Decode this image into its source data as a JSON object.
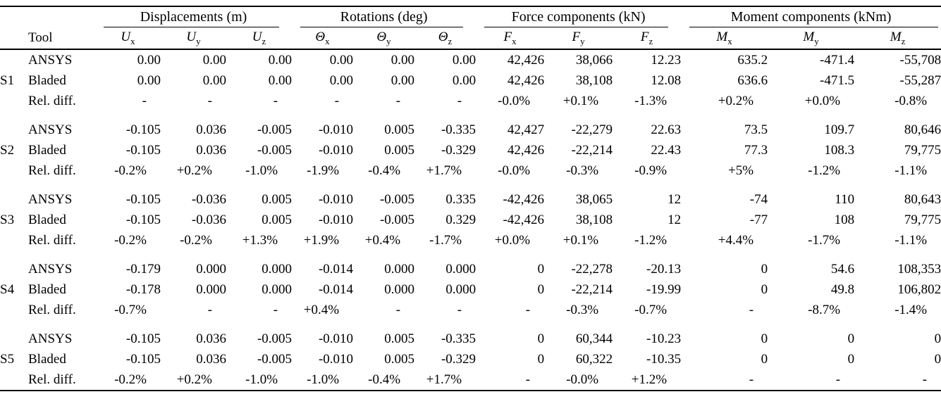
{
  "table": {
    "tool_header": "Tool",
    "groups": [
      {
        "label": "Displacements (m)"
      },
      {
        "label": "Rotations (deg)"
      },
      {
        "label": "Force components (kN)"
      },
      {
        "label": "Moment components (kNm)"
      }
    ],
    "columns": [
      {
        "base": "U",
        "sub": "x"
      },
      {
        "base": "U",
        "sub": "y"
      },
      {
        "base": "U",
        "sub": "z"
      },
      {
        "base": "Θ",
        "sub": "x"
      },
      {
        "base": "Θ",
        "sub": "y"
      },
      {
        "base": "Θ",
        "sub": "z"
      },
      {
        "base": "F",
        "sub": "x"
      },
      {
        "base": "F",
        "sub": "y"
      },
      {
        "base": "F",
        "sub": "z"
      },
      {
        "base": "M",
        "sub": "x"
      },
      {
        "base": "M",
        "sub": "y"
      },
      {
        "base": "M",
        "sub": "z"
      }
    ],
    "sections": [
      {
        "id": "S1",
        "rows": [
          {
            "tool": "ANSYS",
            "values": [
              "0.00",
              "0.00",
              "0.00",
              "0.00",
              "0.00",
              "0.00",
              "42,426",
              "38,066",
              "12.23",
              "635.2",
              "-471.4",
              "-55,708"
            ]
          },
          {
            "tool": "Bladed",
            "values": [
              "0.00",
              "0.00",
              "0.00",
              "0.00",
              "0.00",
              "0.00",
              "42,426",
              "38,108",
              "12.08",
              "636.6",
              "-471.5",
              "-55,287"
            ]
          },
          {
            "tool": "Rel. diff.",
            "values": [
              "-",
              "-",
              "-",
              "-",
              "-",
              "-",
              "-0.0%",
              "+0.1%",
              "-1.3%",
              "+0.2%",
              "+0.0%",
              "-0.8%"
            ]
          }
        ]
      },
      {
        "id": "S2",
        "rows": [
          {
            "tool": "ANSYS",
            "values": [
              "-0.105",
              "0.036",
              "-0.005",
              "-0.010",
              "0.005",
              "-0.335",
              "42,427",
              "-22,279",
              "22.63",
              "73.5",
              "109.7",
              "80,646"
            ]
          },
          {
            "tool": "Bladed",
            "values": [
              "-0.105",
              "0.036",
              "-0.005",
              "-0.010",
              "0.005",
              "-0.329",
              "42,426",
              "-22,214",
              "22.43",
              "77.3",
              "108.3",
              "79,775"
            ]
          },
          {
            "tool": "Rel. diff.",
            "values": [
              "-0.2%",
              "+0.2%",
              "-1.0%",
              "-1.9%",
              "-0.4%",
              "+1.7%",
              "-0.0%",
              "-0.3%",
              "-0.9%",
              "+5%",
              "-1.2%",
              "-1.1%"
            ]
          }
        ]
      },
      {
        "id": "S3",
        "rows": [
          {
            "tool": "ANSYS",
            "values": [
              "-0.105",
              "-0.036",
              "0.005",
              "-0.010",
              "-0.005",
              "0.335",
              "-42,426",
              "38,065",
              "12",
              "-74",
              "110",
              "80,643"
            ]
          },
          {
            "tool": "Bladed",
            "values": [
              "-0.105",
              "-0.036",
              "0.005",
              "-0.010",
              "-0.005",
              "0.329",
              "-42,426",
              "38,108",
              "12",
              "-77",
              "108",
              "79,775"
            ]
          },
          {
            "tool": "Rel. diff.",
            "values": [
              "-0.2%",
              "-0.2%",
              "+1.3%",
              "+1.9%",
              "+0.4%",
              "-1.7%",
              "+0.0%",
              "+0.1%",
              "-1.2%",
              "+4.4%",
              "-1.7%",
              "-1.1%"
            ]
          }
        ]
      },
      {
        "id": "S4",
        "rows": [
          {
            "tool": "ANSYS",
            "values": [
              "-0.179",
              "0.000",
              "0.000",
              "-0.014",
              "0.000",
              "0.000",
              "0",
              "-22,278",
              "-20.13",
              "0",
              "54.6",
              "108,353"
            ]
          },
          {
            "tool": "Bladed",
            "values": [
              "-0.178",
              "0.000",
              "0.000",
              "-0.014",
              "0.000",
              "0.000",
              "0",
              "-22,214",
              "-19.99",
              "0",
              "49.8",
              "106,802"
            ]
          },
          {
            "tool": "Rel. diff.",
            "values": [
              "-0.7%",
              "-",
              "-",
              "+0.4%",
              "-",
              "-",
              "-",
              "-0.3%",
              "-0.7%",
              "-",
              "-8.7%",
              "-1.4%"
            ]
          }
        ]
      },
      {
        "id": "S5",
        "rows": [
          {
            "tool": "ANSYS",
            "values": [
              "-0.105",
              "0.036",
              "-0.005",
              "-0.010",
              "0.005",
              "-0.335",
              "0",
              "60,344",
              "-10.23",
              "0",
              "0",
              "0"
            ]
          },
          {
            "tool": "Bladed",
            "values": [
              "-0.105",
              "0.036",
              "-0.005",
              "-0.010",
              "0.005",
              "-0.329",
              "0",
              "60,322",
              "-10.35",
              "0",
              "0",
              "0"
            ]
          },
          {
            "tool": "Rel. diff.",
            "values": [
              "-0.2%",
              "+0.2%",
              "-1.0%",
              "-1.0%",
              "-0.4%",
              "+1.7%",
              "-",
              "-0.0%",
              "+1.2%",
              "-",
              "-",
              "-"
            ]
          }
        ]
      }
    ]
  }
}
